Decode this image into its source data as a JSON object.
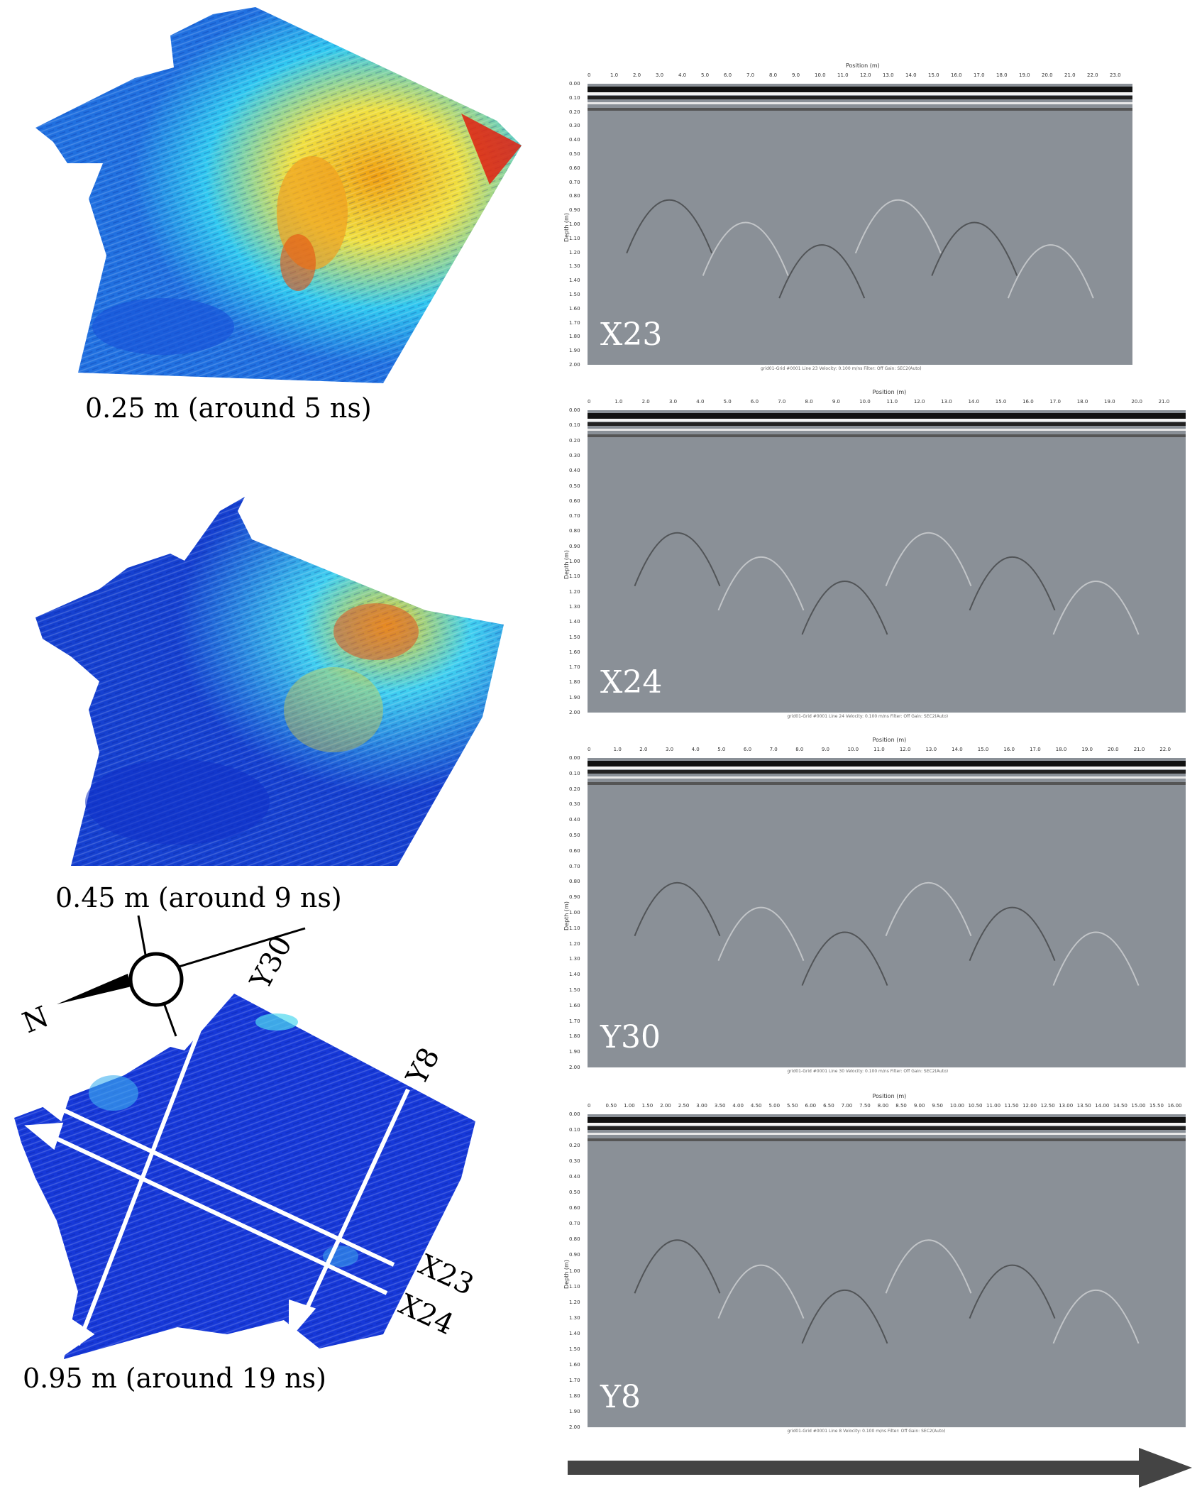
{
  "figure": {
    "slices": [
      {
        "caption": "0.25 m (around 5 ns)"
      },
      {
        "caption": "0.45 m (around 9 ns)"
      },
      {
        "caption": "0.95 m (around 19 ns)"
      }
    ],
    "compass": {
      "north_label": "N"
    },
    "profile_lines": [
      "Y30",
      "Y8",
      "X23",
      "X24"
    ],
    "radargrams": [
      {
        "label": "X23",
        "x_axis_title": "Position (m)",
        "y_axis_title": "Depth (m)",
        "x_ticks": [
          "0",
          "1.0",
          "2.0",
          "3.0",
          "4.0",
          "5.0",
          "6.0",
          "7.0",
          "8.0",
          "9.0",
          "10.0",
          "11.0",
          "12.0",
          "13.0",
          "14.0",
          "15.0",
          "16.0",
          "17.0",
          "18.0",
          "19.0",
          "20.0",
          "21.0",
          "22.0",
          "23.0"
        ],
        "footer": "grid01-Grid #0001 Line 23   Velocity: 0.100 m/ns   Filter: Off   Gain: SEC2(Auto)"
      },
      {
        "label": "X24",
        "x_axis_title": "Position (m)",
        "y_axis_title": "Depth (m)",
        "x_ticks": [
          "0",
          "1.0",
          "2.0",
          "3.0",
          "4.0",
          "5.0",
          "6.0",
          "7.0",
          "8.0",
          "9.0",
          "10.0",
          "11.0",
          "12.0",
          "13.0",
          "14.0",
          "15.0",
          "16.0",
          "17.0",
          "18.0",
          "19.0",
          "20.0",
          "21.0"
        ],
        "footer": "grid01-Grid #0001 Line 24   Velocity: 0.100 m/ns   Filter: Off   Gain: SEC2(Auto)"
      },
      {
        "label": "Y30",
        "x_axis_title": "Position (m)",
        "y_axis_title": "Depth (m)",
        "x_ticks": [
          "0",
          "1.0",
          "2.0",
          "3.0",
          "4.0",
          "5.0",
          "6.0",
          "7.0",
          "8.0",
          "9.0",
          "10.0",
          "11.0",
          "12.0",
          "13.0",
          "14.0",
          "15.0",
          "16.0",
          "17.0",
          "18.0",
          "19.0",
          "20.0",
          "21.0",
          "22.0"
        ],
        "footer": "grid01-Grid #0001 Line 30   Velocity: 0.100 m/ns   Filter: Off   Gain: SEC2(Auto)"
      },
      {
        "label": "Y8",
        "x_axis_title": "Position (m)",
        "y_axis_title": "Depth (m)",
        "x_ticks": [
          "0",
          "0.50",
          "1.00",
          "1.50",
          "2.00",
          "2.50",
          "3.00",
          "3.50",
          "4.00",
          "4.50",
          "5.00",
          "5.50",
          "6.00",
          "6.50",
          "7.00",
          "7.50",
          "8.00",
          "8.50",
          "9.00",
          "9.50",
          "10.00",
          "10.50",
          "11.00",
          "11.50",
          "12.00",
          "12.50",
          "13.00",
          "13.50",
          "14.00",
          "14.50",
          "15.00",
          "15.50",
          "16.00"
        ],
        "footer": "grid01-Grid #0001 Line 8   Velocity: 0.100 m/ns   Filter: Off   Gain: SEC2(Auto)"
      }
    ],
    "depth_ticks": [
      "0.00",
      "0.10",
      "0.20",
      "0.30",
      "0.40",
      "0.50",
      "0.60",
      "0.70",
      "0.80",
      "0.90",
      "1.00",
      "1.10",
      "1.20",
      "1.30",
      "1.40",
      "1.50",
      "1.60",
      "1.70",
      "1.80",
      "1.90",
      "2.00"
    ],
    "colors": {
      "low": "#1030c8",
      "mid": "#30c8f0",
      "high": "#f0d020",
      "peak": "#e02010",
      "gpr": "#8a9097",
      "arrow": "#444444"
    }
  }
}
